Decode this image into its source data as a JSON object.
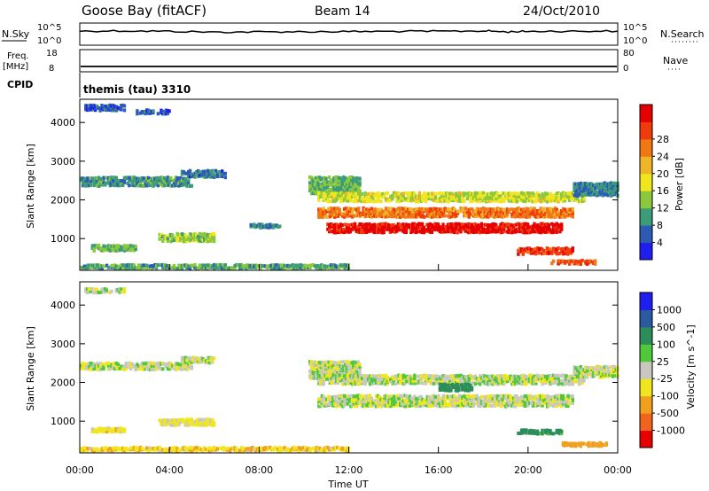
{
  "header": {
    "station": "Goose Bay (fitACF)",
    "beam": "Beam 14",
    "date": "24/Oct/2010"
  },
  "noise_panel": {
    "left_label": "N.Sky",
    "right_label": "N.Search",
    "left_ticks": [
      "10^5",
      "10^0"
    ],
    "right_ticks": [
      "10^5",
      "10^0"
    ]
  },
  "freq_panel": {
    "left_label_1": "Freq.",
    "left_label_2": "[MHz]",
    "left_ticks": [
      "18",
      "8"
    ],
    "right_label": "Nave",
    "right_ticks": [
      "80",
      "0"
    ]
  },
  "cpid": {
    "label": "CPID",
    "value": "themis (tau) 3310"
  },
  "axes": {
    "ylabel": "Slant Range [km]",
    "yticks": [
      "1000",
      "2000",
      "3000",
      "4000"
    ],
    "xlabel": "Time UT",
    "xticks": [
      "00:00",
      "04:00",
      "08:00",
      "12:00",
      "16:00",
      "20:00",
      "00:00"
    ]
  },
  "colorbars": {
    "power": {
      "label": "Power [dB]",
      "ticks": [
        "4",
        "8",
        "12",
        "16",
        "20",
        "24",
        "28"
      ],
      "colors": [
        "#1e1ef0",
        "#2c5ab4",
        "#3c9c78",
        "#8cc83c",
        "#f0e61e",
        "#f0b428",
        "#f07814",
        "#f03c0a",
        "#e60000"
      ]
    },
    "velocity": {
      "label": "Velocity [m s^-1]",
      "ticks": [
        "1000",
        "500",
        "100",
        "25",
        "-25",
        "-100",
        "-500",
        "-1000"
      ],
      "colors": [
        "#1e1ef0",
        "#2c5aa0",
        "#2c8c5a",
        "#50c83c",
        "#c8c8c0",
        "#f0e61e",
        "#f0a01e",
        "#f0641e",
        "#e60000"
      ]
    }
  },
  "chart_data": [
    {
      "type": "line",
      "title": "Goose Bay (fitACF)",
      "panel": "N.Sky / N.Search",
      "x": [
        0,
        2,
        4,
        6,
        8,
        10,
        12,
        14,
        16,
        18,
        19,
        20,
        22,
        24
      ],
      "series": [
        {
          "name": "N.Sky",
          "values": [
            3000,
            3500,
            2500,
            1500,
            1800,
            2000,
            2200,
            2500,
            2600,
            3500,
            1800,
            2600,
            2800,
            3000
          ]
        }
      ],
      "ylim_log10": [
        0,
        5
      ]
    },
    {
      "type": "heatmap",
      "panel": "Power",
      "xlabel": "Time UT",
      "ylabel": "Slant Range [km]",
      "xlim_hours": [
        0,
        24
      ],
      "ylim_km": [
        180,
        4600
      ],
      "color_scale_db": [
        0,
        30
      ],
      "regions": [
        {
          "t0": 0.0,
          "t1": 5.0,
          "r": 2500,
          "dr": 250,
          "p": 8
        },
        {
          "t0": 4.5,
          "t1": 6.5,
          "r": 2700,
          "dr": 200,
          "p": 6
        },
        {
          "t0": 0.2,
          "t1": 2.0,
          "r": 4400,
          "dr": 150,
          "p": 5
        },
        {
          "t0": 2.5,
          "t1": 4.0,
          "r": 4300,
          "dr": 120,
          "p": 5
        },
        {
          "t0": 0.5,
          "t1": 2.5,
          "r": 780,
          "dr": 150,
          "p": 10
        },
        {
          "t0": 3.5,
          "t1": 6.0,
          "r": 1050,
          "dr": 220,
          "p": 12
        },
        {
          "t0": 7.5,
          "t1": 9.0,
          "r": 1350,
          "dr": 100,
          "p": 7
        },
        {
          "t0": 0.0,
          "t1": 12.0,
          "r": 300,
          "dr": 120,
          "p": 9
        },
        {
          "t0": 10.2,
          "t1": 12.5,
          "r": 2400,
          "dr": 450,
          "p": 10
        },
        {
          "t0": 10.6,
          "t1": 22.5,
          "r": 2100,
          "dr": 250,
          "p": 14
        },
        {
          "t0": 10.6,
          "t1": 22.0,
          "r": 1700,
          "dr": 250,
          "p": 22
        },
        {
          "t0": 11.0,
          "t1": 21.5,
          "r": 1300,
          "dr": 250,
          "p": 28
        },
        {
          "t0": 19.5,
          "t1": 22.0,
          "r": 700,
          "dr": 180,
          "p": 26
        },
        {
          "t0": 21.0,
          "t1": 23.0,
          "r": 420,
          "dr": 120,
          "p": 24
        },
        {
          "t0": 22.0,
          "t1": 24.0,
          "r": 2300,
          "dr": 350,
          "p": 7
        }
      ]
    },
    {
      "type": "heatmap",
      "panel": "Velocity",
      "xlabel": "Time UT",
      "ylabel": "Slant Range [km]",
      "xlim_hours": [
        0,
        24
      ],
      "ylim_km": [
        180,
        4600
      ],
      "color_scale_ms": [
        -1000,
        1000
      ],
      "regions": [
        {
          "t0": 0.0,
          "t1": 5.0,
          "r": 2450,
          "dr": 200,
          "v": 0
        },
        {
          "t0": 4.5,
          "t1": 6.0,
          "r": 2600,
          "dr": 150,
          "v": 0
        },
        {
          "t0": 0.2,
          "t1": 2.0,
          "r": 4400,
          "dr": 120,
          "v": 0
        },
        {
          "t0": 0.5,
          "t1": 2.0,
          "r": 800,
          "dr": 120,
          "v": -60
        },
        {
          "t0": 3.5,
          "t1": 6.0,
          "r": 1000,
          "dr": 180,
          "v": -40
        },
        {
          "t0": 0.0,
          "t1": 12.0,
          "r": 300,
          "dr": 100,
          "v": -80
        },
        {
          "t0": 10.2,
          "t1": 12.5,
          "r": 2350,
          "dr": 450,
          "v": 0
        },
        {
          "t0": 10.6,
          "t1": 22.5,
          "r": 2100,
          "dr": 250,
          "v": 0
        },
        {
          "t0": 10.6,
          "t1": 22.0,
          "r": 1550,
          "dr": 300,
          "v": 0
        },
        {
          "t0": 16.0,
          "t1": 17.5,
          "r": 1900,
          "dr": 200,
          "v": 200
        },
        {
          "t0": 19.5,
          "t1": 21.5,
          "r": 750,
          "dr": 120,
          "v": 150
        },
        {
          "t0": 21.5,
          "t1": 23.5,
          "r": 420,
          "dr": 100,
          "v": -300
        },
        {
          "t0": 22.0,
          "t1": 24.0,
          "r": 2300,
          "dr": 300,
          "v": 0
        }
      ]
    }
  ]
}
